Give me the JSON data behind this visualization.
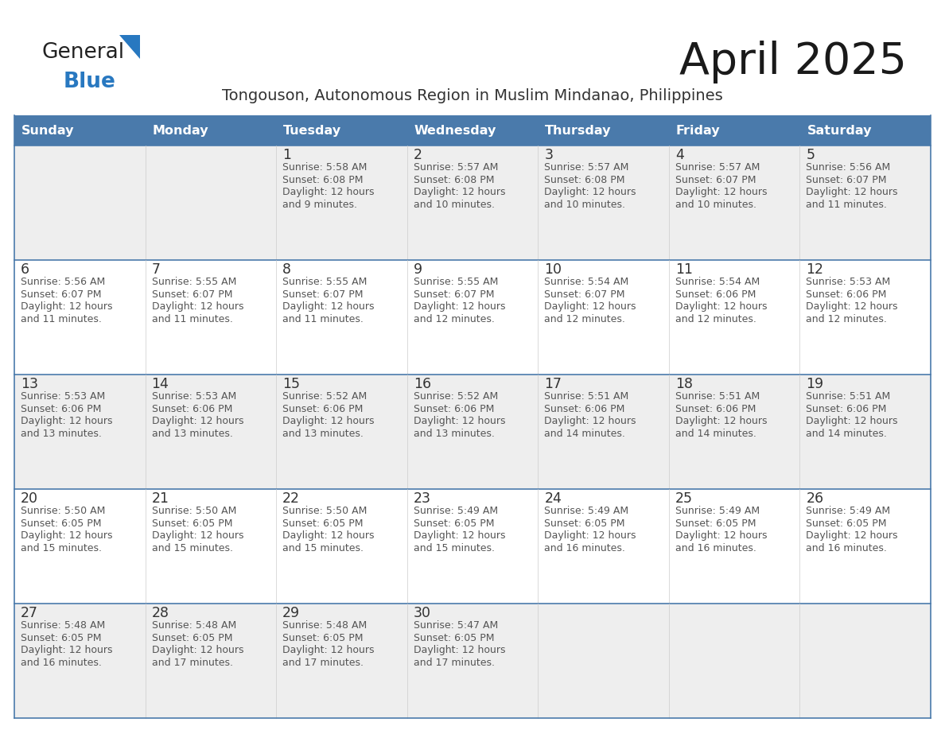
{
  "title": "April 2025",
  "subtitle": "Tongouson, Autonomous Region in Muslim Mindanao, Philippines",
  "header_bg_color": "#4a7aab",
  "header_text_color": "#ffffff",
  "days_of_week": [
    "Sunday",
    "Monday",
    "Tuesday",
    "Wednesday",
    "Thursday",
    "Friday",
    "Saturday"
  ],
  "bg_color": "#ffffff",
  "cell_bg_row0": "#eeeeee",
  "cell_bg_row1": "#ffffff",
  "cell_border_color": "#4a7aab",
  "cell_inner_border_color": "#cccccc",
  "day_num_color": "#333333",
  "text_color": "#555555",
  "logo_general_color": "#222222",
  "logo_blue_color": "#2878c0",
  "logo_triangle_color": "#2878c0",
  "title_color": "#1a1a1a",
  "subtitle_color": "#333333",
  "calendar_data": [
    [
      {
        "day": null,
        "sunrise": null,
        "sunset": null,
        "daylight_min": null
      },
      {
        "day": null,
        "sunrise": null,
        "sunset": null,
        "daylight_min": null
      },
      {
        "day": 1,
        "sunrise": "5:58 AM",
        "sunset": "6:08 PM",
        "daylight_min": "9"
      },
      {
        "day": 2,
        "sunrise": "5:57 AM",
        "sunset": "6:08 PM",
        "daylight_min": "10"
      },
      {
        "day": 3,
        "sunrise": "5:57 AM",
        "sunset": "6:08 PM",
        "daylight_min": "10"
      },
      {
        "day": 4,
        "sunrise": "5:57 AM",
        "sunset": "6:07 PM",
        "daylight_min": "10"
      },
      {
        "day": 5,
        "sunrise": "5:56 AM",
        "sunset": "6:07 PM",
        "daylight_min": "11"
      }
    ],
    [
      {
        "day": 6,
        "sunrise": "5:56 AM",
        "sunset": "6:07 PM",
        "daylight_min": "11"
      },
      {
        "day": 7,
        "sunrise": "5:55 AM",
        "sunset": "6:07 PM",
        "daylight_min": "11"
      },
      {
        "day": 8,
        "sunrise": "5:55 AM",
        "sunset": "6:07 PM",
        "daylight_min": "11"
      },
      {
        "day": 9,
        "sunrise": "5:55 AM",
        "sunset": "6:07 PM",
        "daylight_min": "12"
      },
      {
        "day": 10,
        "sunrise": "5:54 AM",
        "sunset": "6:07 PM",
        "daylight_min": "12"
      },
      {
        "day": 11,
        "sunrise": "5:54 AM",
        "sunset": "6:06 PM",
        "daylight_min": "12"
      },
      {
        "day": 12,
        "sunrise": "5:53 AM",
        "sunset": "6:06 PM",
        "daylight_min": "12"
      }
    ],
    [
      {
        "day": 13,
        "sunrise": "5:53 AM",
        "sunset": "6:06 PM",
        "daylight_min": "13"
      },
      {
        "day": 14,
        "sunrise": "5:53 AM",
        "sunset": "6:06 PM",
        "daylight_min": "13"
      },
      {
        "day": 15,
        "sunrise": "5:52 AM",
        "sunset": "6:06 PM",
        "daylight_min": "13"
      },
      {
        "day": 16,
        "sunrise": "5:52 AM",
        "sunset": "6:06 PM",
        "daylight_min": "13"
      },
      {
        "day": 17,
        "sunrise": "5:51 AM",
        "sunset": "6:06 PM",
        "daylight_min": "14"
      },
      {
        "day": 18,
        "sunrise": "5:51 AM",
        "sunset": "6:06 PM",
        "daylight_min": "14"
      },
      {
        "day": 19,
        "sunrise": "5:51 AM",
        "sunset": "6:06 PM",
        "daylight_min": "14"
      }
    ],
    [
      {
        "day": 20,
        "sunrise": "5:50 AM",
        "sunset": "6:05 PM",
        "daylight_min": "15"
      },
      {
        "day": 21,
        "sunrise": "5:50 AM",
        "sunset": "6:05 PM",
        "daylight_min": "15"
      },
      {
        "day": 22,
        "sunrise": "5:50 AM",
        "sunset": "6:05 PM",
        "daylight_min": "15"
      },
      {
        "day": 23,
        "sunrise": "5:49 AM",
        "sunset": "6:05 PM",
        "daylight_min": "15"
      },
      {
        "day": 24,
        "sunrise": "5:49 AM",
        "sunset": "6:05 PM",
        "daylight_min": "16"
      },
      {
        "day": 25,
        "sunrise": "5:49 AM",
        "sunset": "6:05 PM",
        "daylight_min": "16"
      },
      {
        "day": 26,
        "sunrise": "5:49 AM",
        "sunset": "6:05 PM",
        "daylight_min": "16"
      }
    ],
    [
      {
        "day": 27,
        "sunrise": "5:48 AM",
        "sunset": "6:05 PM",
        "daylight_min": "16"
      },
      {
        "day": 28,
        "sunrise": "5:48 AM",
        "sunset": "6:05 PM",
        "daylight_min": "17"
      },
      {
        "day": 29,
        "sunrise": "5:48 AM",
        "sunset": "6:05 PM",
        "daylight_min": "17"
      },
      {
        "day": 30,
        "sunrise": "5:47 AM",
        "sunset": "6:05 PM",
        "daylight_min": "17"
      },
      {
        "day": null,
        "sunrise": null,
        "sunset": null,
        "daylight_min": null
      },
      {
        "day": null,
        "sunrise": null,
        "sunset": null,
        "daylight_min": null
      },
      {
        "day": null,
        "sunrise": null,
        "sunset": null,
        "daylight_min": null
      }
    ]
  ]
}
